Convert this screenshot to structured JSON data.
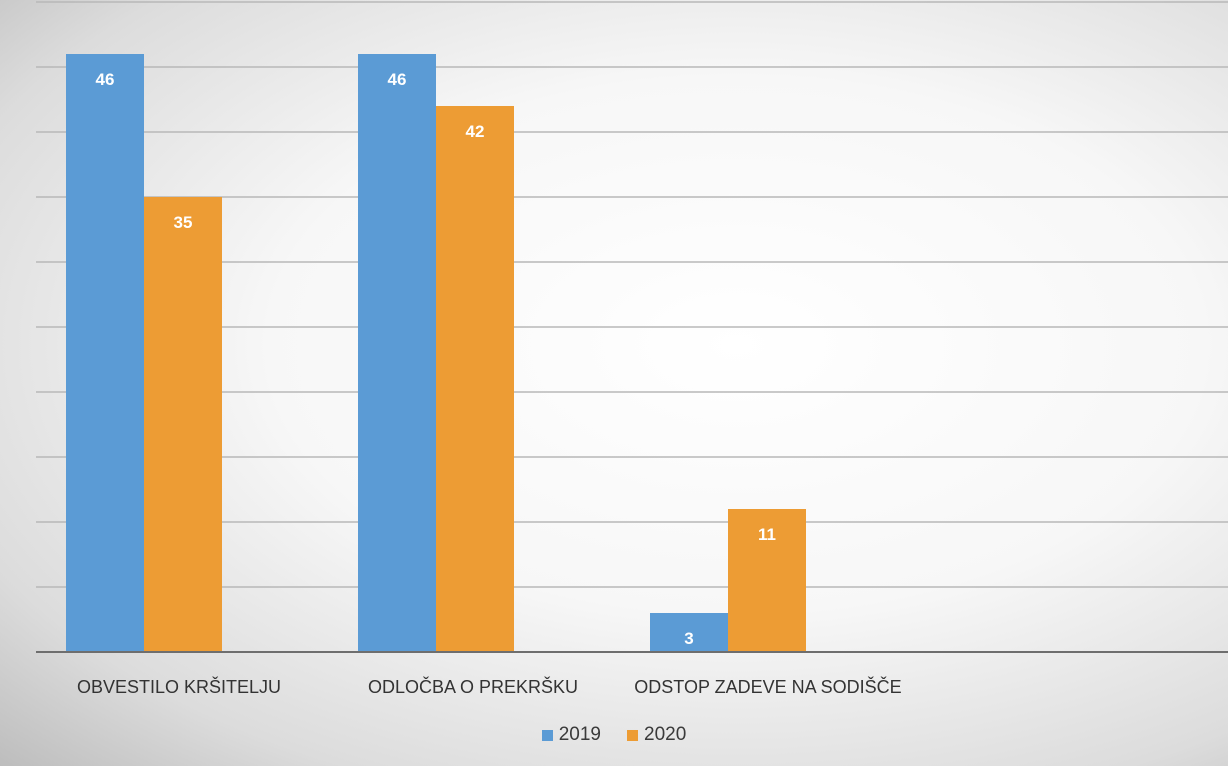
{
  "chart_data": {
    "type": "bar",
    "categories": [
      "OBVESTILO KRŠITELJU",
      "ODLOČBA O PREKRŠKU",
      "ODSTOP ZADEVE NA SODIŠČE"
    ],
    "series": [
      {
        "name": "2019",
        "values": [
          46,
          46,
          3
        ],
        "color": "#5b9bd5"
      },
      {
        "name": "2020",
        "values": [
          35,
          42,
          11
        ],
        "color": "#ed9c34"
      }
    ],
    "title": "",
    "xlabel": "",
    "ylabel": "",
    "ylim": [
      0,
      50
    ],
    "grid": true,
    "legend_position": "bottom",
    "data_labels": true
  }
}
